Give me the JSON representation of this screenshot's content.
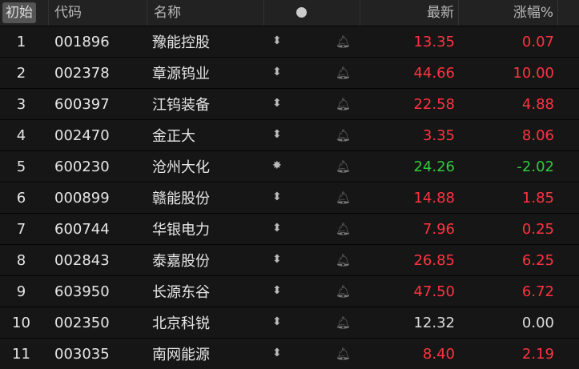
{
  "header": {
    "init": "初始",
    "code": "代码",
    "name": "名称",
    "price": "最新",
    "change": "涨幅%"
  },
  "colors": {
    "up": "#ff3340",
    "down": "#2fcc3d",
    "flat": "#dddddd"
  },
  "rows": [
    {
      "idx": "1",
      "code": "001896",
      "name": "豫能控股",
      "icon": "up-down-arrow-icon",
      "price": "13.35",
      "chg": "0.07",
      "dir": "up"
    },
    {
      "idx": "2",
      "code": "002378",
      "name": "章源钨业",
      "icon": "up-down-arrow-icon",
      "price": "44.66",
      "chg": "10.00",
      "dir": "up"
    },
    {
      "idx": "3",
      "code": "600397",
      "name": "江钨装备",
      "icon": "up-down-arrow-icon",
      "price": "22.58",
      "chg": "4.88",
      "dir": "up"
    },
    {
      "idx": "4",
      "code": "002470",
      "name": "金正大",
      "icon": "up-down-arrow-icon",
      "price": "3.35",
      "chg": "8.06",
      "dir": "up"
    },
    {
      "idx": "5",
      "code": "600230",
      "name": "沧州大化",
      "icon": "sun-icon",
      "price": "24.26",
      "chg": "-2.02",
      "dir": "dn"
    },
    {
      "idx": "6",
      "code": "000899",
      "name": "赣能股份",
      "icon": "up-down-arrow-icon",
      "price": "14.88",
      "chg": "1.85",
      "dir": "up"
    },
    {
      "idx": "7",
      "code": "600744",
      "name": "华银电力",
      "icon": "up-down-arrow-icon",
      "price": "7.96",
      "chg": "0.25",
      "dir": "up"
    },
    {
      "idx": "8",
      "code": "002843",
      "name": "泰嘉股份",
      "icon": "up-down-arrow-icon",
      "price": "26.85",
      "chg": "6.25",
      "dir": "up"
    },
    {
      "idx": "9",
      "code": "603950",
      "name": "长源东谷",
      "icon": "up-down-arrow-icon",
      "price": "47.50",
      "chg": "6.72",
      "dir": "up"
    },
    {
      "idx": "10",
      "code": "002350",
      "name": "北京科锐",
      "icon": "up-down-arrow-icon",
      "price": "12.32",
      "chg": "0.00",
      "dir": "fl"
    },
    {
      "idx": "11",
      "code": "003035",
      "name": "南网能源",
      "icon": "up-down-arrow-icon",
      "price": "8.40",
      "chg": "2.19",
      "dir": "up"
    }
  ]
}
